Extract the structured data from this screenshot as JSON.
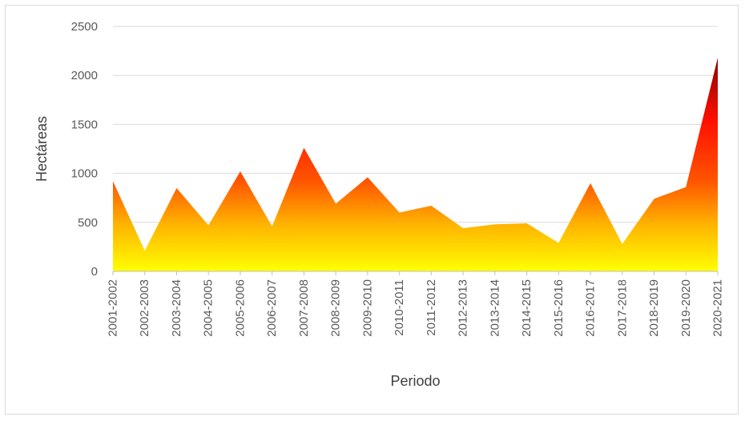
{
  "chart_data": {
    "type": "area",
    "title": "",
    "xlabel": "Periodo",
    "ylabel": "Hectáreas",
    "ylim": [
      0,
      2500
    ],
    "yticks": [
      "0",
      "500",
      "1000",
      "1500",
      "2000",
      "2500"
    ],
    "grid": true,
    "legend": "none",
    "categories": [
      "2001-2002",
      "2002-2003",
      "2003-2004",
      "2004-2005",
      "2005-2006",
      "2006-2007",
      "2007-2008",
      "2008-2009",
      "2009-2010",
      "2010-2011",
      "2011-2012",
      "2012-2013",
      "2013-2014",
      "2014-2015",
      "2015-2016",
      "2016-2017",
      "2017-2018",
      "2018-2019",
      "2019-2020",
      "2020-2021"
    ],
    "values": [
      920,
      210,
      850,
      470,
      1020,
      460,
      1260,
      690,
      960,
      600,
      670,
      440,
      480,
      490,
      290,
      900,
      280,
      740,
      860,
      2180
    ],
    "fill_gradient": [
      "#ffff00",
      "#ffa500",
      "#ff4500",
      "#ff0000",
      "#8b0000"
    ]
  }
}
